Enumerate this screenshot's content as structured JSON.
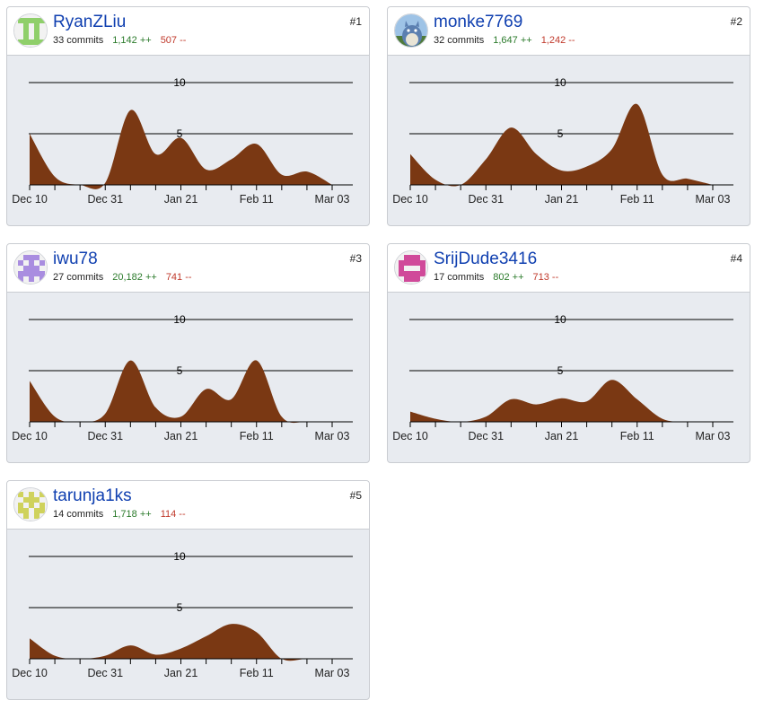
{
  "colors": {
    "area": "#7a3813",
    "username": "#0f3fb0",
    "additions": "#2a7a2a",
    "deletions": "#c0392b",
    "panel": "#e8ebf0"
  },
  "axis": {
    "x_ticks": [
      "Dec 10",
      "Dec 31",
      "Jan 21",
      "Feb 11",
      "Mar 03"
    ],
    "y_ticks": [
      "5",
      "10"
    ],
    "y_max": 10
  },
  "contributors": [
    {
      "rank": "#1",
      "username": "RyanZLiu",
      "commits": "33 commits",
      "additions": "1,142 ++",
      "deletions": "507 --",
      "avatar": {
        "icon": "identicon-avatar",
        "color": "#8fcf6a",
        "cells": [
          [
            1,
            1,
            1,
            1,
            1
          ],
          [
            0,
            1,
            0,
            1,
            0
          ],
          [
            0,
            1,
            0,
            1,
            0
          ],
          [
            0,
            1,
            0,
            1,
            0
          ],
          [
            1,
            1,
            1,
            1,
            1
          ]
        ]
      },
      "chart_data": {
        "type": "area",
        "x": [
          "Dec 10",
          "Dec 17",
          "Dec 24",
          "Dec 31",
          "Jan 07",
          "Jan 14",
          "Jan 21",
          "Jan 28",
          "Feb 04",
          "Feb 11",
          "Feb 18",
          "Feb 25",
          "Mar 03"
        ],
        "y": [
          5,
          0.8,
          0,
          0.2,
          7.3,
          3,
          4.6,
          1.5,
          2.5,
          4,
          1,
          1.3,
          0
        ]
      }
    },
    {
      "rank": "#2",
      "username": "monke7769",
      "commits": "32 commits",
      "additions": "1,647 ++",
      "deletions": "1,242 --",
      "avatar": {
        "icon": "totoro-avatar",
        "color": "#5b7fb0",
        "cells": []
      },
      "chart_data": {
        "type": "area",
        "x": [
          "Dec 10",
          "Dec 17",
          "Dec 24",
          "Dec 31",
          "Jan 07",
          "Jan 14",
          "Jan 21",
          "Jan 28",
          "Feb 04",
          "Feb 11",
          "Feb 18",
          "Feb 25",
          "Mar 03"
        ],
        "y": [
          3,
          0.5,
          0,
          2.5,
          5.6,
          3,
          1.4,
          1.8,
          3.5,
          7.9,
          1,
          0.6,
          0
        ]
      }
    },
    {
      "rank": "#3",
      "username": "iwu78",
      "commits": "27 commits",
      "additions": "20,182 ++",
      "deletions": "741 --",
      "avatar": {
        "icon": "identicon-avatar",
        "color": "#a98de0",
        "cells": [
          [
            0,
            1,
            1,
            1,
            0
          ],
          [
            1,
            0,
            1,
            0,
            1
          ],
          [
            0,
            1,
            1,
            1,
            0
          ],
          [
            1,
            1,
            1,
            1,
            1
          ],
          [
            1,
            0,
            1,
            0,
            1
          ]
        ]
      },
      "chart_data": {
        "type": "area",
        "x": [
          "Dec 10",
          "Dec 17",
          "Dec 24",
          "Dec 31",
          "Jan 07",
          "Jan 14",
          "Jan 21",
          "Jan 28",
          "Feb 04",
          "Feb 11",
          "Feb 18",
          "Feb 25",
          "Mar 03"
        ],
        "y": [
          4,
          0.5,
          0,
          0.8,
          6,
          1.4,
          0.5,
          3.2,
          2.2,
          6,
          0.5,
          0,
          0
        ]
      }
    },
    {
      "rank": "#4",
      "username": "SrijDude3416",
      "commits": "17 commits",
      "additions": "802 ++",
      "deletions": "713 --",
      "avatar": {
        "icon": "identicon-avatar",
        "color": "#d04a9a",
        "cells": [
          [
            0,
            1,
            1,
            1,
            0
          ],
          [
            1,
            1,
            1,
            1,
            1
          ],
          [
            1,
            0,
            0,
            0,
            1
          ],
          [
            1,
            1,
            1,
            1,
            1
          ],
          [
            0,
            1,
            1,
            1,
            0
          ]
        ]
      },
      "chart_data": {
        "type": "area",
        "x": [
          "Dec 10",
          "Dec 17",
          "Dec 24",
          "Dec 31",
          "Jan 07",
          "Jan 14",
          "Jan 21",
          "Jan 28",
          "Feb 04",
          "Feb 11",
          "Feb 18",
          "Feb 25",
          "Mar 03"
        ],
        "y": [
          1,
          0.3,
          0,
          0.5,
          2.2,
          1.7,
          2.3,
          2,
          4.1,
          2.2,
          0.3,
          0,
          0
        ]
      }
    },
    {
      "rank": "#5",
      "username": "tarunja1ks",
      "commits": "14 commits",
      "additions": "1,718 ++",
      "deletions": "114 --",
      "avatar": {
        "icon": "identicon-avatar",
        "color": "#cfd25c",
        "cells": [
          [
            1,
            0,
            1,
            0,
            1
          ],
          [
            0,
            1,
            1,
            1,
            0
          ],
          [
            1,
            0,
            1,
            0,
            1
          ],
          [
            1,
            1,
            0,
            1,
            1
          ],
          [
            0,
            1,
            0,
            1,
            0
          ]
        ]
      },
      "chart_data": {
        "type": "area",
        "x": [
          "Dec 10",
          "Dec 17",
          "Dec 24",
          "Dec 31",
          "Jan 07",
          "Jan 14",
          "Jan 21",
          "Jan 28",
          "Feb 04",
          "Feb 11",
          "Feb 18",
          "Feb 25",
          "Mar 03"
        ],
        "y": [
          2,
          0.3,
          0,
          0.3,
          1.3,
          0.4,
          1,
          2.2,
          3.4,
          2.6,
          0,
          0,
          0
        ]
      }
    }
  ]
}
